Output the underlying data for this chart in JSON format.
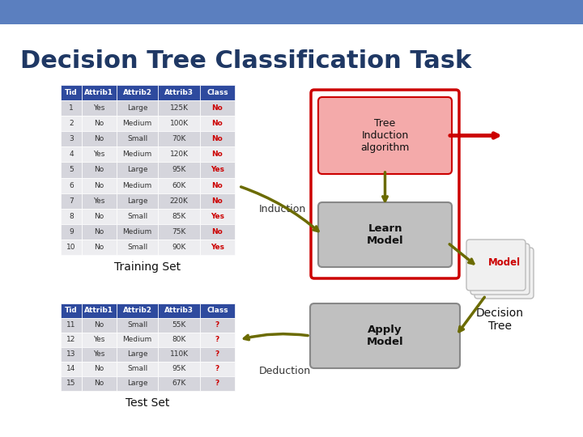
{
  "title": "Decision Tree Classification Task",
  "title_color": "#1F3864",
  "bg_color": "#FFFFFF",
  "header_bar_color": "#5B7FBF",
  "train_headers": [
    "Tid",
    "Attrib1",
    "Attrib2",
    "Attrib3",
    "Class"
  ],
  "train_rows": [
    [
      "1",
      "Yes",
      "Large",
      "125K",
      "No"
    ],
    [
      "2",
      "No",
      "Medium",
      "100K",
      "No"
    ],
    [
      "3",
      "No",
      "Small",
      "70K",
      "No"
    ],
    [
      "4",
      "Yes",
      "Medium",
      "120K",
      "No"
    ],
    [
      "5",
      "No",
      "Large",
      "95K",
      "Yes"
    ],
    [
      "6",
      "No",
      "Medium",
      "60K",
      "No"
    ],
    [
      "7",
      "Yes",
      "Large",
      "220K",
      "No"
    ],
    [
      "8",
      "No",
      "Small",
      "85K",
      "Yes"
    ],
    [
      "9",
      "No",
      "Medium",
      "75K",
      "No"
    ],
    [
      "10",
      "No",
      "Small",
      "90K",
      "Yes"
    ]
  ],
  "test_headers": [
    "Tid",
    "Attrib1",
    "Attrib2",
    "Attrib3",
    "Class"
  ],
  "test_rows": [
    [
      "11",
      "No",
      "Small",
      "55K",
      "?"
    ],
    [
      "12",
      "Yes",
      "Medium",
      "80K",
      "?"
    ],
    [
      "13",
      "Yes",
      "Large",
      "110K",
      "?"
    ],
    [
      "14",
      "No",
      "Small",
      "95K",
      "?"
    ],
    [
      "15",
      "No",
      "Large",
      "67K",
      "?"
    ]
  ],
  "yes_no_color": "#CC0000",
  "question_color": "#CC0000",
  "olive_color": "#6B6B00",
  "red_arrow_color": "#CC0000",
  "pink_box_color": "#F4AAAA",
  "pink_box_edge": "#CC0000",
  "gray_box_color": "#C0C0C0",
  "gray_box_edge": "#888888",
  "red_container_edge": "#CC0000",
  "model_stack_color": "#F0F0F0",
  "model_stack_edge": "#BBBBBB",
  "header_bg": "#2E4A9E",
  "row_odd": "#D5D5DC",
  "row_even": "#EDEDF0",
  "induction_label": "Induction",
  "deduction_label": "Deduction",
  "tree_induction_label": "Tree\nInduction\nalgorithm",
  "learn_model_label": "Learn\nModel",
  "apply_model_label": "Apply\nModel",
  "model_label": "Model",
  "decision_tree_label": "Decision\nTree",
  "training_set_label": "Training Set",
  "test_set_label": "Test Set"
}
